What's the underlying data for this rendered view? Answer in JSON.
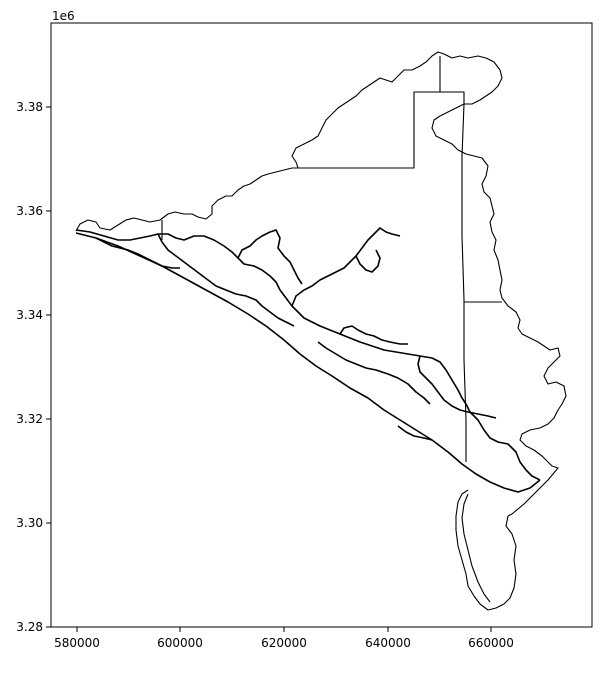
{
  "axes": {
    "x_ticks": [
      "580000",
      "600000",
      "620000",
      "640000",
      "660000"
    ],
    "y_ticks": [
      "3.28",
      "3.30",
      "3.32",
      "3.34",
      "3.36",
      "3.38"
    ],
    "y_offset_label": "1e6"
  },
  "colors": {
    "boundary": "#000000",
    "background": "#ffffff"
  }
}
